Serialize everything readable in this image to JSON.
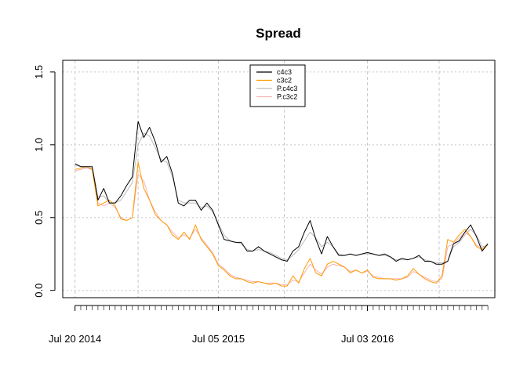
{
  "chart_data": {
    "type": "line",
    "title": "Spread",
    "xlabel": "",
    "ylabel": "",
    "ylim": [
      -0.05,
      1.58
    ],
    "yticks": [
      0.0,
      0.5,
      1.0,
      1.5
    ],
    "ytick_labels": [
      "0.0",
      "0.5",
      "1.0",
      "1.5"
    ],
    "xtick_labels": [
      {
        "x": "2014-07-20",
        "label": "Jul 20 2014"
      },
      {
        "x": "2015-07-05",
        "label": "Jul 05 2015"
      },
      {
        "x": "2016-07-03",
        "label": "Jul 03 2016"
      }
    ],
    "xlim": [
      "2014-06-20",
      "2017-05-10"
    ],
    "xgrid": [
      "2014-07-20",
      "2014-12-21",
      "2015-07-05",
      "2015-12-13",
      "2016-07-03",
      "2016-12-25"
    ],
    "grid": true,
    "legend": "top-center",
    "x": [
      "2014-07-20",
      "2014-08-03",
      "2014-08-17",
      "2014-08-31",
      "2014-09-14",
      "2014-09-28",
      "2014-10-12",
      "2014-10-26",
      "2014-11-09",
      "2014-11-23",
      "2014-12-07",
      "2014-12-21",
      "2015-01-04",
      "2015-01-18",
      "2015-02-01",
      "2015-02-15",
      "2015-03-01",
      "2015-03-15",
      "2015-03-29",
      "2015-04-12",
      "2015-04-26",
      "2015-05-10",
      "2015-05-24",
      "2015-06-07",
      "2015-06-21",
      "2015-07-05",
      "2015-07-19",
      "2015-08-02",
      "2015-08-16",
      "2015-08-30",
      "2015-09-13",
      "2015-09-27",
      "2015-10-11",
      "2015-10-25",
      "2015-11-08",
      "2015-11-22",
      "2015-12-06",
      "2015-12-20",
      "2016-01-03",
      "2016-01-17",
      "2016-01-31",
      "2016-02-14",
      "2016-02-28",
      "2016-03-13",
      "2016-03-27",
      "2016-04-10",
      "2016-04-24",
      "2016-05-08",
      "2016-05-22",
      "2016-06-05",
      "2016-06-19",
      "2016-07-03",
      "2016-07-17",
      "2016-07-31",
      "2016-08-14",
      "2016-08-28",
      "2016-09-11",
      "2016-09-25",
      "2016-10-09",
      "2016-10-23",
      "2016-11-06",
      "2016-11-20",
      "2016-12-04",
      "2016-12-18",
      "2017-01-01",
      "2017-01-15",
      "2017-01-29",
      "2017-02-12",
      "2017-02-26",
      "2017-03-12",
      "2017-03-26",
      "2017-04-09",
      "2017-04-23"
    ],
    "series": [
      {
        "name": "c4c3",
        "color": "#000000",
        "values": [
          0.87,
          0.85,
          0.85,
          0.85,
          0.62,
          0.7,
          0.6,
          0.6,
          0.65,
          0.72,
          0.78,
          1.16,
          1.05,
          1.12,
          1.02,
          0.88,
          0.92,
          0.8,
          0.6,
          0.58,
          0.62,
          0.62,
          0.55,
          0.6,
          0.55,
          0.45,
          0.35,
          0.34,
          0.33,
          0.33,
          0.27,
          0.27,
          0.3,
          0.27,
          0.25,
          0.23,
          0.21,
          0.2,
          0.27,
          0.3,
          0.4,
          0.48,
          0.35,
          0.25,
          0.37,
          0.3,
          0.24,
          0.24,
          0.25,
          0.24,
          0.25,
          0.26,
          0.25,
          0.24,
          0.25,
          0.23,
          0.2,
          0.22,
          0.21,
          0.22,
          0.24,
          0.2,
          0.2,
          0.18,
          0.18,
          0.2,
          0.32,
          0.34,
          0.4,
          0.45,
          0.37,
          0.27,
          0.32
        ]
      },
      {
        "name": "c3c2",
        "color": "#ff9900",
        "values": [
          0.83,
          0.84,
          0.85,
          0.83,
          0.58,
          0.6,
          0.62,
          0.58,
          0.49,
          0.48,
          0.5,
          0.88,
          0.7,
          0.62,
          0.52,
          0.48,
          0.45,
          0.38,
          0.35,
          0.4,
          0.35,
          0.45,
          0.35,
          0.3,
          0.25,
          0.17,
          0.14,
          0.1,
          0.08,
          0.08,
          0.06,
          0.05,
          0.06,
          0.05,
          0.04,
          0.05,
          0.03,
          0.03,
          0.1,
          0.05,
          0.15,
          0.22,
          0.12,
          0.1,
          0.18,
          0.2,
          0.18,
          0.16,
          0.12,
          0.14,
          0.12,
          0.14,
          0.09,
          0.08,
          0.08,
          0.08,
          0.07,
          0.08,
          0.1,
          0.15,
          0.11,
          0.08,
          0.06,
          0.05,
          0.1,
          0.35,
          0.33,
          0.38,
          0.42,
          0.37,
          0.3,
          0.28,
          0.32
        ]
      },
      {
        "name": "P.c4c3",
        "color": "#bbbbbb",
        "values": [
          0.86,
          0.85,
          0.84,
          0.84,
          0.64,
          0.65,
          0.6,
          0.6,
          0.62,
          0.68,
          0.74,
          1.0,
          1.08,
          1.06,
          0.98,
          0.9,
          0.88,
          0.78,
          0.62,
          0.6,
          0.6,
          0.6,
          0.57,
          0.58,
          0.54,
          0.46,
          0.38,
          0.34,
          0.33,
          0.32,
          0.28,
          0.27,
          0.28,
          0.27,
          0.26,
          0.24,
          0.22,
          0.21,
          0.24,
          0.28,
          0.34,
          0.4,
          0.36,
          0.3,
          0.33,
          0.3,
          0.25,
          0.24,
          0.25,
          0.24,
          0.25,
          0.25,
          0.25,
          0.24,
          0.24,
          0.23,
          0.21,
          0.21,
          0.21,
          0.22,
          0.23,
          0.21,
          0.2,
          0.19,
          0.19,
          0.2,
          0.3,
          0.33,
          0.38,
          0.42,
          0.38,
          0.3,
          0.31
        ]
      },
      {
        "name": "P.c3c2",
        "color": "#f4b4b4",
        "values": [
          0.82,
          0.83,
          0.84,
          0.83,
          0.6,
          0.58,
          0.6,
          0.57,
          0.5,
          0.48,
          0.5,
          0.8,
          0.75,
          0.62,
          0.54,
          0.48,
          0.45,
          0.4,
          0.36,
          0.38,
          0.36,
          0.42,
          0.36,
          0.31,
          0.26,
          0.18,
          0.15,
          0.11,
          0.09,
          0.08,
          0.07,
          0.06,
          0.06,
          0.05,
          0.05,
          0.05,
          0.04,
          0.04,
          0.07,
          0.06,
          0.12,
          0.18,
          0.14,
          0.11,
          0.16,
          0.18,
          0.17,
          0.16,
          0.13,
          0.14,
          0.12,
          0.13,
          0.1,
          0.09,
          0.08,
          0.08,
          0.08,
          0.08,
          0.09,
          0.13,
          0.11,
          0.09,
          0.07,
          0.06,
          0.08,
          0.3,
          0.32,
          0.36,
          0.4,
          0.37,
          0.31,
          0.29,
          0.31
        ]
      }
    ]
  }
}
